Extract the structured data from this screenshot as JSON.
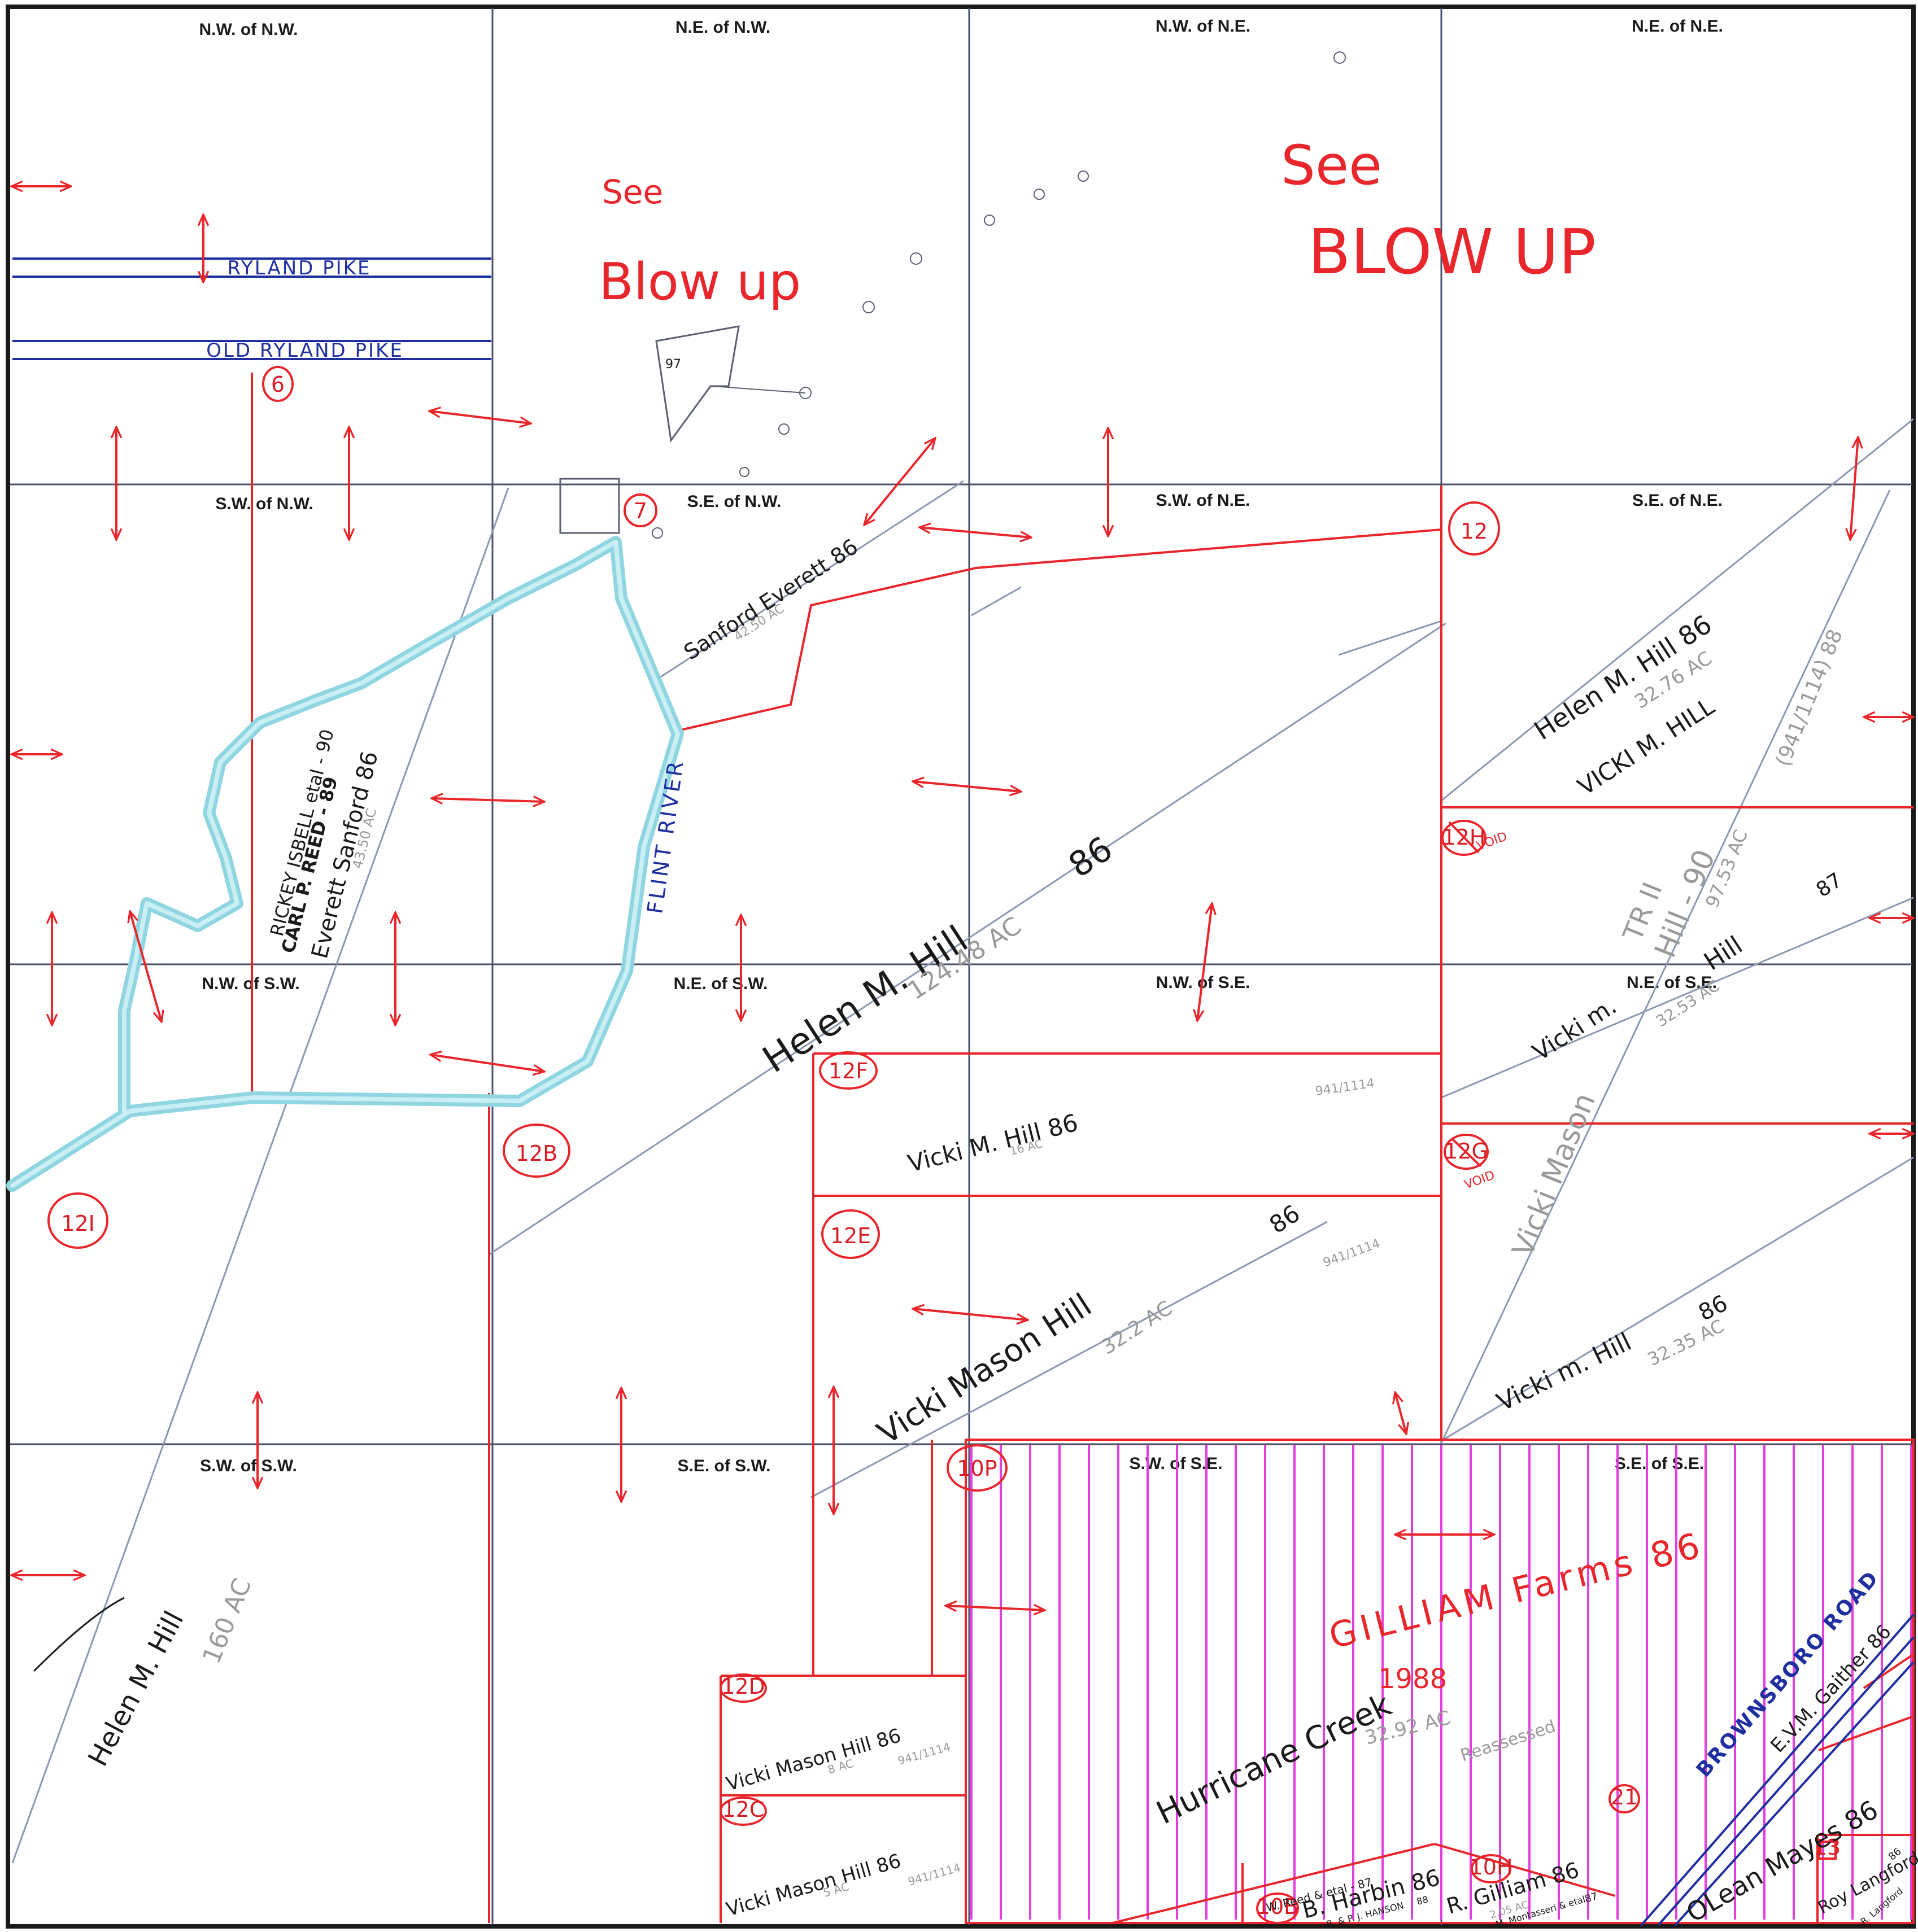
{
  "quarters": {
    "nw_nw": "N.W. of N.W.",
    "ne_nw": "N.E. of N.W.",
    "nw_ne": "N.W. of N.E.",
    "ne_ne": "N.E. of N.E.",
    "sw_nw": "S.W. of N.W.",
    "se_nw": "S.E. of N.W.",
    "sw_ne": "S.W. of N.E.",
    "se_ne": "S.E. of N.E.",
    "nw_sw": "N.W. of S.W.",
    "ne_sw": "N.E. of S.W.",
    "nw_se": "N.W. of S.E.",
    "ne_se": "N.E. of S.E.",
    "sw_sw": "S.W. of S.W.",
    "se_sw": "S.E. of S.W.",
    "sw_se": "S.W. of S.E.",
    "se_se": "S.E. of S.E."
  },
  "notes": {
    "see1": "See",
    "blowup1": "Blow up",
    "see2": "See",
    "blowup2": "BLOW UP",
    "plot_97": "97"
  },
  "roads": {
    "ryland_pike": "RYLAND PIKE",
    "old_ryland_pike": "OLD RYLAND PIKE",
    "flint_river": "FLINT RIVER",
    "brownsboro_road": "BROWNSBORO ROAD"
  },
  "parcel_ids": {
    "p6": "6",
    "p7": "7",
    "p12": "12",
    "p12h": "12H",
    "p12b": "12B",
    "p12f": "12F",
    "p12e": "12E",
    "p12g": "12G",
    "p12i": "12I",
    "p12d": "12D",
    "p12c": "12C",
    "p10p": "10P",
    "p10b": "10B",
    "p10h": "10H",
    "p21": "21",
    "p13": "13"
  },
  "void_marks": {
    "void1": "VOID",
    "void2": "VOID"
  },
  "owners": {
    "sanford_everett": "Sanford Everett 86",
    "sanford_everett_ac": "42.50 AC",
    "rickey_isbell": "RICKEY ISBELL etal - 90",
    "carl_reed": "CARL P. REED - 89",
    "everett_sanford": "Everett Sanford 86",
    "everett_sanford_ac": "43.50 AC",
    "helen_hill_se_ne": "Helen M. Hill 86",
    "helen_hill_se_ne_ac": "32.76 AC",
    "vicki_hill_se_ne": "VICKI M. HILL",
    "deed_ref_88": "(941/1114) 88",
    "helen_hill_big": "Helen M. Hill",
    "helen_hill_big_yr": "86",
    "helen_hill_big_ac": "124.48 AC",
    "tr_ii": "TR II",
    "hill_90": "Hill - 90",
    "hill_90_ac": "97.53 AC",
    "hill_87": "Hill",
    "hill_87_yr": "87",
    "vicki_m_ne_se": "Vicki m.",
    "vicki_m_ne_se_ac": "32.53 AC",
    "vicki_mason_diag": "Vicki Mason",
    "vicki_hill_12f": "Vicki M. Hill 86",
    "vicki_hill_12f_ac": "16 AC",
    "deed_12f": "941/1114",
    "vicki_mason_hill_12e": "Vicki Mason Hill",
    "vicki_mason_hill_12e_yr": "86",
    "vicki_mason_hill_12e_ac": "32.2 AC",
    "deed_12e": "941/1114",
    "vicki_hill_se": "Vicki m. Hill",
    "vicki_hill_se_yr": "86",
    "vicki_hill_se_ac": "32.35 AC",
    "helen_hill_sw": "Helen M. Hill",
    "helen_hill_sw_ac": "160 AC",
    "vicki_mason_hill_12d": "Vicki Mason Hill 86",
    "vicki_mason_hill_12d_ac": "8 AC",
    "deed_12d": "941/1114",
    "vicki_mason_hill_12c": "Vicki Mason Hill 86",
    "vicki_mason_hill_12c_ac": "5 AC",
    "deed_12c": "941/1114",
    "gilliam_farms": "GILLIAM Farms 86",
    "gilliam_1988": "1988",
    "hurricane_creek": "Hurricane Creek",
    "hurricane_creek_ac": "32.92 AC",
    "reassessed": "Reassessed",
    "b_harbin": "B. Harbin 86",
    "w_reed": "W. Reed & etal - 87",
    "harbin_sub": "B. & P. J. HANSON",
    "harbin_sub_yr": "88",
    "r_gilliam": "R. Gilliam 86",
    "r_gilliam_sub": "M. Montasseri & etal",
    "r_gilliam_sub_yr": "87",
    "r_gilliam_ac": "2.05 AC",
    "olean_mayes": "OLean Mayes 86",
    "evm_gaither": "E.V.M. Gaither 86",
    "roy_langford": "Roy Langford",
    "r_langford": "R. Langford",
    "langford_yr": "86"
  },
  "colors": {
    "red_ink": "#e8262b",
    "blue_ink": "#1f2fa0",
    "river_fill": "#a6dfe8",
    "magenta_hatch": "#e23ee0",
    "grid_line": "#4a4f6a",
    "pencil": "#8c97b0"
  }
}
